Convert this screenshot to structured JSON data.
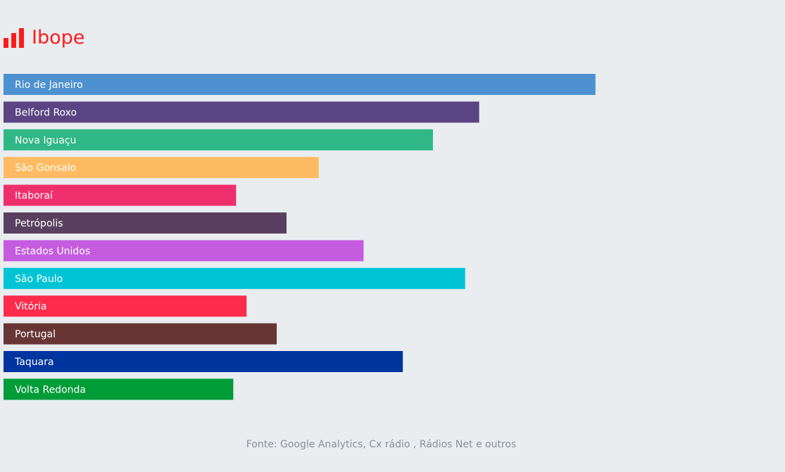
{
  "header": {
    "title": "Ibope",
    "icon": "bar-chart-icon",
    "accent_color": "#ff1a1a"
  },
  "chart_data": {
    "type": "bar",
    "orientation": "horizontal",
    "title": "Ibope",
    "categories": [
      "Rio de Janeiro",
      "Belford Roxo",
      "Nova Iguaçu",
      "São Gonsalo",
      "Itaboraí",
      "Petrópolis",
      "Estados Unidos",
      "São Paulo",
      "Vitória",
      "Portugal",
      "Taquara",
      "Volta Redonda"
    ],
    "values": [
      845,
      679,
      613,
      450,
      332,
      404,
      514,
      659,
      347,
      390,
      570,
      328
    ],
    "colors": [
      "#4d91d0",
      "#5a4483",
      "#2fb885",
      "#ffbb62",
      "#ef2f6d",
      "#5a4060",
      "#c55cdf",
      "#00c3d6",
      "#ff2b4b",
      "#683535",
      "#0035a0",
      "#009c37"
    ],
    "xlim": [
      0,
      1000
    ],
    "grid": false,
    "legend": "none",
    "source": "Fonte: Google Analytics, Cx rádio , Rádios Net e outros"
  }
}
